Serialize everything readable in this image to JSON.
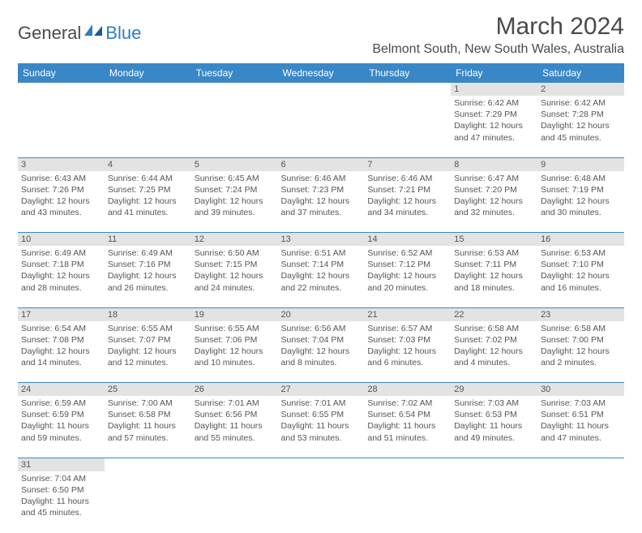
{
  "brand": {
    "general": "General",
    "blue": "Blue"
  },
  "title": "March 2024",
  "location": "Belmont South, New South Wales, Australia",
  "colors": {
    "header_bg": "#3a87c7",
    "header_text": "#ffffff",
    "daynum_bg": "#e3e3e3",
    "divider": "#3a87c7",
    "text": "#555555",
    "logo_blue": "#2e7cc0"
  },
  "daysOfWeek": [
    "Sunday",
    "Monday",
    "Tuesday",
    "Wednesday",
    "Thursday",
    "Friday",
    "Saturday"
  ],
  "weeks": [
    {
      "nums": [
        "",
        "",
        "",
        "",
        "",
        "1",
        "2"
      ],
      "cells": [
        null,
        null,
        null,
        null,
        null,
        {
          "sunrise": "Sunrise: 6:42 AM",
          "sunset": "Sunset: 7:29 PM",
          "day1": "Daylight: 12 hours",
          "day2": "and 47 minutes."
        },
        {
          "sunrise": "Sunrise: 6:42 AM",
          "sunset": "Sunset: 7:28 PM",
          "day1": "Daylight: 12 hours",
          "day2": "and 45 minutes."
        }
      ]
    },
    {
      "nums": [
        "3",
        "4",
        "5",
        "6",
        "7",
        "8",
        "9"
      ],
      "cells": [
        {
          "sunrise": "Sunrise: 6:43 AM",
          "sunset": "Sunset: 7:26 PM",
          "day1": "Daylight: 12 hours",
          "day2": "and 43 minutes."
        },
        {
          "sunrise": "Sunrise: 6:44 AM",
          "sunset": "Sunset: 7:25 PM",
          "day1": "Daylight: 12 hours",
          "day2": "and 41 minutes."
        },
        {
          "sunrise": "Sunrise: 6:45 AM",
          "sunset": "Sunset: 7:24 PM",
          "day1": "Daylight: 12 hours",
          "day2": "and 39 minutes."
        },
        {
          "sunrise": "Sunrise: 6:46 AM",
          "sunset": "Sunset: 7:23 PM",
          "day1": "Daylight: 12 hours",
          "day2": "and 37 minutes."
        },
        {
          "sunrise": "Sunrise: 6:46 AM",
          "sunset": "Sunset: 7:21 PM",
          "day1": "Daylight: 12 hours",
          "day2": "and 34 minutes."
        },
        {
          "sunrise": "Sunrise: 6:47 AM",
          "sunset": "Sunset: 7:20 PM",
          "day1": "Daylight: 12 hours",
          "day2": "and 32 minutes."
        },
        {
          "sunrise": "Sunrise: 6:48 AM",
          "sunset": "Sunset: 7:19 PM",
          "day1": "Daylight: 12 hours",
          "day2": "and 30 minutes."
        }
      ]
    },
    {
      "nums": [
        "10",
        "11",
        "12",
        "13",
        "14",
        "15",
        "16"
      ],
      "cells": [
        {
          "sunrise": "Sunrise: 6:49 AM",
          "sunset": "Sunset: 7:18 PM",
          "day1": "Daylight: 12 hours",
          "day2": "and 28 minutes."
        },
        {
          "sunrise": "Sunrise: 6:49 AM",
          "sunset": "Sunset: 7:16 PM",
          "day1": "Daylight: 12 hours",
          "day2": "and 26 minutes."
        },
        {
          "sunrise": "Sunrise: 6:50 AM",
          "sunset": "Sunset: 7:15 PM",
          "day1": "Daylight: 12 hours",
          "day2": "and 24 minutes."
        },
        {
          "sunrise": "Sunrise: 6:51 AM",
          "sunset": "Sunset: 7:14 PM",
          "day1": "Daylight: 12 hours",
          "day2": "and 22 minutes."
        },
        {
          "sunrise": "Sunrise: 6:52 AM",
          "sunset": "Sunset: 7:12 PM",
          "day1": "Daylight: 12 hours",
          "day2": "and 20 minutes."
        },
        {
          "sunrise": "Sunrise: 6:53 AM",
          "sunset": "Sunset: 7:11 PM",
          "day1": "Daylight: 12 hours",
          "day2": "and 18 minutes."
        },
        {
          "sunrise": "Sunrise: 6:53 AM",
          "sunset": "Sunset: 7:10 PM",
          "day1": "Daylight: 12 hours",
          "day2": "and 16 minutes."
        }
      ]
    },
    {
      "nums": [
        "17",
        "18",
        "19",
        "20",
        "21",
        "22",
        "23"
      ],
      "cells": [
        {
          "sunrise": "Sunrise: 6:54 AM",
          "sunset": "Sunset: 7:08 PM",
          "day1": "Daylight: 12 hours",
          "day2": "and 14 minutes."
        },
        {
          "sunrise": "Sunrise: 6:55 AM",
          "sunset": "Sunset: 7:07 PM",
          "day1": "Daylight: 12 hours",
          "day2": "and 12 minutes."
        },
        {
          "sunrise": "Sunrise: 6:55 AM",
          "sunset": "Sunset: 7:06 PM",
          "day1": "Daylight: 12 hours",
          "day2": "and 10 minutes."
        },
        {
          "sunrise": "Sunrise: 6:56 AM",
          "sunset": "Sunset: 7:04 PM",
          "day1": "Daylight: 12 hours",
          "day2": "and 8 minutes."
        },
        {
          "sunrise": "Sunrise: 6:57 AM",
          "sunset": "Sunset: 7:03 PM",
          "day1": "Daylight: 12 hours",
          "day2": "and 6 minutes."
        },
        {
          "sunrise": "Sunrise: 6:58 AM",
          "sunset": "Sunset: 7:02 PM",
          "day1": "Daylight: 12 hours",
          "day2": "and 4 minutes."
        },
        {
          "sunrise": "Sunrise: 6:58 AM",
          "sunset": "Sunset: 7:00 PM",
          "day1": "Daylight: 12 hours",
          "day2": "and 2 minutes."
        }
      ]
    },
    {
      "nums": [
        "24",
        "25",
        "26",
        "27",
        "28",
        "29",
        "30"
      ],
      "cells": [
        {
          "sunrise": "Sunrise: 6:59 AM",
          "sunset": "Sunset: 6:59 PM",
          "day1": "Daylight: 11 hours",
          "day2": "and 59 minutes."
        },
        {
          "sunrise": "Sunrise: 7:00 AM",
          "sunset": "Sunset: 6:58 PM",
          "day1": "Daylight: 11 hours",
          "day2": "and 57 minutes."
        },
        {
          "sunrise": "Sunrise: 7:01 AM",
          "sunset": "Sunset: 6:56 PM",
          "day1": "Daylight: 11 hours",
          "day2": "and 55 minutes."
        },
        {
          "sunrise": "Sunrise: 7:01 AM",
          "sunset": "Sunset: 6:55 PM",
          "day1": "Daylight: 11 hours",
          "day2": "and 53 minutes."
        },
        {
          "sunrise": "Sunrise: 7:02 AM",
          "sunset": "Sunset: 6:54 PM",
          "day1": "Daylight: 11 hours",
          "day2": "and 51 minutes."
        },
        {
          "sunrise": "Sunrise: 7:03 AM",
          "sunset": "Sunset: 6:53 PM",
          "day1": "Daylight: 11 hours",
          "day2": "and 49 minutes."
        },
        {
          "sunrise": "Sunrise: 7:03 AM",
          "sunset": "Sunset: 6:51 PM",
          "day1": "Daylight: 11 hours",
          "day2": "and 47 minutes."
        }
      ]
    },
    {
      "nums": [
        "31",
        "",
        "",
        "",
        "",
        "",
        ""
      ],
      "cells": [
        {
          "sunrise": "Sunrise: 7:04 AM",
          "sunset": "Sunset: 6:50 PM",
          "day1": "Daylight: 11 hours",
          "day2": "and 45 minutes."
        },
        null,
        null,
        null,
        null,
        null,
        null
      ]
    }
  ]
}
